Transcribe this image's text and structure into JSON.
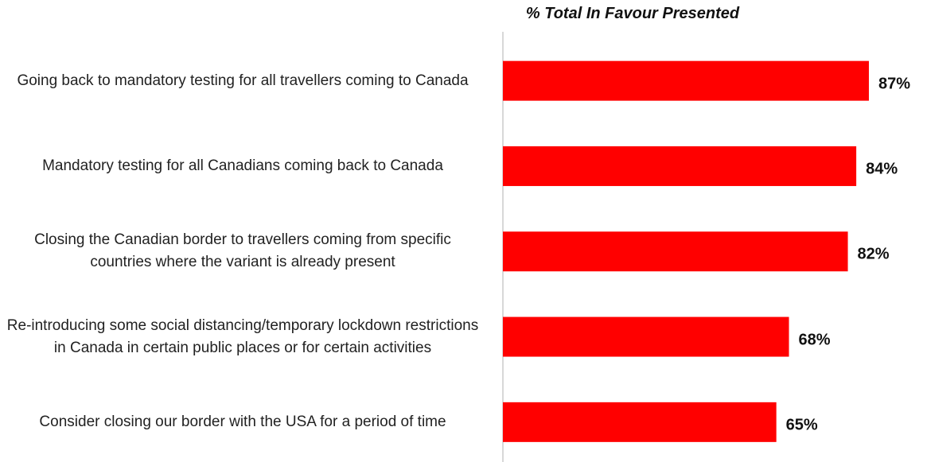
{
  "chart_data": {
    "type": "bar",
    "orientation": "horizontal",
    "title": "% Total In Favour Presented",
    "categories": [
      "Going back to mandatory testing for all travellers coming to Canada",
      "Mandatory testing for all Canadians coming back to Canada",
      "Closing the Canadian border to travellers coming from specific countries where the variant is already present",
      "Re-introducing some social distancing/temporary lockdown restrictions in Canada in certain public places or for certain activities",
      "Consider closing our border with the USA for a period of time"
    ],
    "values": [
      87,
      84,
      82,
      68,
      65
    ],
    "value_labels": [
      "87%",
      "84%",
      "82%",
      "68%",
      "65%"
    ],
    "color": "#ff0000",
    "xlim": [
      0,
      100
    ]
  }
}
